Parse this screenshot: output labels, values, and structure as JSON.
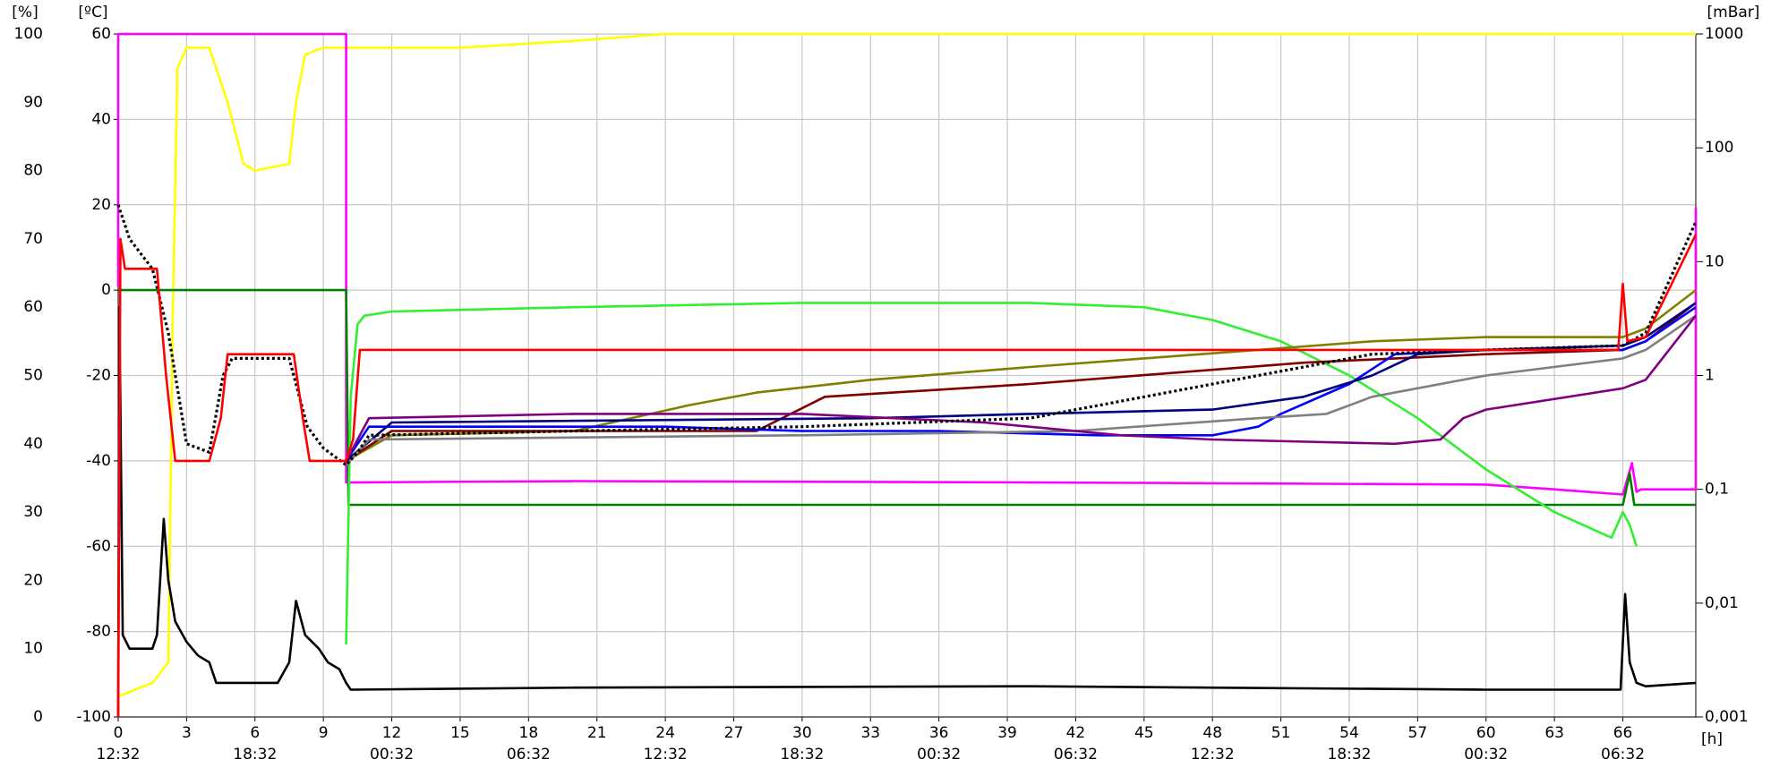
{
  "chart_data": {
    "type": "line",
    "y_label": "[%]",
    "y2_label": "[ºC]",
    "y3_label": "[mBar]",
    "x_label": "[h]",
    "xlim": [
      0,
      69.2
    ],
    "xticks": [
      0,
      3,
      6,
      9,
      12,
      15,
      18,
      21,
      24,
      27,
      30,
      33,
      36,
      39,
      42,
      45,
      48,
      51,
      54,
      57,
      60,
      63,
      66
    ],
    "x_time_ticks": [
      {
        "value": 0,
        "label": "12:32"
      },
      {
        "value": 6,
        "label": "18:32"
      },
      {
        "value": 12,
        "label": "00:32"
      },
      {
        "value": 18,
        "label": "06:32"
      },
      {
        "value": 24,
        "label": "12:32"
      },
      {
        "value": 30,
        "label": "18:32"
      },
      {
        "value": 36,
        "label": "00:32"
      },
      {
        "value": 42,
        "label": "06:32"
      },
      {
        "value": 48,
        "label": "12:32"
      },
      {
        "value": 54,
        "label": "18:32"
      },
      {
        "value": 60,
        "label": "00:32"
      },
      {
        "value": 66,
        "label": "06:32"
      }
    ],
    "ylim": [
      0,
      100
    ],
    "yticks": [
      0,
      10,
      20,
      30,
      40,
      50,
      60,
      70,
      80,
      90,
      100
    ],
    "y2lim": [
      -100,
      60
    ],
    "y2ticks": [
      -100,
      -80,
      -60,
      -40,
      -20,
      0,
      20,
      40,
      60
    ],
    "y3lim": [
      0.001,
      1000
    ],
    "y3_log": true,
    "y3ticks": [
      {
        "value": 0.001,
        "label": "0,001"
      },
      {
        "value": 0.01,
        "label": "0,01"
      },
      {
        "value": 0.1,
        "label": "0,1"
      },
      1,
      10,
      100,
      1000
    ],
    "grid": true,
    "series": [
      {
        "color": "#ffff00",
        "axis": "y",
        "x": [
          0,
          1.5,
          2.2,
          2.4,
          2.6,
          3,
          4,
          4.8,
          5.5,
          6,
          7.5,
          7.8,
          8.2,
          9,
          10,
          15,
          20,
          24,
          69.2
        ],
        "values": [
          3,
          5,
          8,
          60,
          95,
          98,
          98,
          90,
          81,
          80,
          81,
          90,
          97,
          98,
          98,
          98,
          99,
          100,
          100
        ]
      },
      {
        "color": "#ff00ff",
        "axis": "y3",
        "x": [
          0,
          0,
          10,
          10,
          10.3,
          20,
          40,
          60,
          63,
          66,
          66.4,
          66.6,
          66.8,
          69.2,
          69.2
        ],
        "values": [
          6,
          1000,
          1000,
          0.115,
          0.115,
          0.118,
          0.115,
          0.11,
          0.1,
          0.09,
          0.17,
          0.095,
          0.1,
          0.1,
          30
        ]
      },
      {
        "color": "#008000",
        "axis": "y2",
        "x": [
          0,
          10,
          10.1,
          30,
          60,
          66,
          66.3,
          66.5,
          69.2
        ],
        "values": [
          0,
          0,
          -50.3,
          -50.3,
          -50.3,
          -50.3,
          -43,
          -50.3,
          -50.3
        ]
      },
      {
        "color": "#33ee33",
        "axis": "y2",
        "x": [
          10,
          10.2,
          10.5,
          10.8,
          12,
          20,
          30,
          40,
          45,
          48,
          51,
          54,
          57,
          60,
          63,
          65.5,
          66,
          66.3,
          66.6
        ],
        "values": [
          -83,
          -25,
          -8,
          -6,
          -5,
          -4,
          -3,
          -3,
          -4,
          -7,
          -12,
          -20,
          -30,
          -42,
          -52,
          -58,
          -52,
          -55,
          -60
        ]
      },
      {
        "color": "#000000",
        "axis": "y",
        "x": [
          0,
          0.05,
          0.2,
          0.5,
          1.5,
          1.7,
          2,
          2.2,
          2.5,
          3,
          3.5,
          4,
          4.3,
          5,
          7,
          7.5,
          7.8,
          8.2,
          8.8,
          9.2,
          9.7,
          10,
          10.2,
          20,
          40,
          60,
          65.9,
          66.1,
          66.3,
          66.6,
          67,
          69.2
        ],
        "values": [
          0,
          60,
          12,
          10,
          10,
          12,
          29,
          20,
          14,
          11,
          9,
          8,
          5,
          5,
          5,
          8,
          17,
          12,
          10,
          8,
          7,
          5,
          4,
          4.3,
          4.5,
          4,
          4,
          18,
          8,
          5,
          4.5,
          5
        ]
      },
      {
        "color": "#808000",
        "axis": "y2",
        "x": [
          10,
          12,
          20,
          25,
          28,
          33,
          40,
          45,
          50,
          55,
          60,
          66,
          67,
          69.2
        ],
        "values": [
          -40,
          -34,
          -33,
          -27,
          -24,
          -21,
          -18,
          -16,
          -14,
          -12,
          -11,
          -11,
          -9,
          0
        ]
      },
      {
        "color": "#800000",
        "axis": "y2",
        "x": [
          10,
          12,
          20,
          28,
          31,
          40,
          52,
          60,
          66,
          67,
          69.2
        ],
        "values": [
          -40,
          -33,
          -33,
          -33,
          -25,
          -22,
          -17,
          -15,
          -14,
          -12,
          -3
        ]
      },
      {
        "color": "#0000ff",
        "axis": "y2",
        "x": [
          10,
          11,
          24,
          30,
          36,
          43,
          48,
          50,
          51,
          54,
          56,
          60,
          66,
          67,
          69.2
        ],
        "values": [
          -40,
          -32,
          -32,
          -33,
          -33,
          -34,
          -34,
          -32,
          -29,
          -22,
          -15,
          -14,
          -14,
          -12,
          -4
        ]
      },
      {
        "color": "#000080",
        "axis": "y2",
        "x": [
          10,
          12,
          33,
          40,
          48,
          52,
          55,
          57,
          60,
          66,
          67,
          69.2
        ],
        "values": [
          -40,
          -31,
          -30,
          -29,
          -28,
          -25,
          -20,
          -15,
          -14,
          -13,
          -11,
          -3
        ]
      },
      {
        "color": "#808080",
        "axis": "y2",
        "x": [
          10,
          11,
          30,
          42,
          50,
          53,
          55,
          60,
          66,
          67,
          69.2
        ],
        "values": [
          -41,
          -35,
          -34,
          -33,
          -30,
          -29,
          -25,
          -20,
          -16,
          -14,
          -6
        ]
      },
      {
        "color": "#800080",
        "axis": "y2",
        "x": [
          10,
          11,
          20,
          30,
          38,
          44,
          48,
          56,
          58,
          59,
          60,
          66,
          67,
          69.2
        ],
        "values": [
          -40,
          -30,
          -29,
          -29,
          -31,
          -34,
          -35,
          -36,
          -35,
          -30,
          -28,
          -23,
          -21,
          -6
        ]
      },
      {
        "color": "#000000",
        "axis": "y2",
        "dashed": true,
        "x": [
          0,
          0.5,
          1.5,
          2.2,
          3,
          4,
          4.6,
          5,
          7.5,
          8.3,
          9,
          10,
          10.5,
          11,
          20,
          30,
          40,
          50,
          55,
          60,
          66,
          67,
          69.2
        ],
        "values": [
          20,
          12,
          5,
          -10,
          -36,
          -38,
          -20,
          -16,
          -16,
          -32,
          -37,
          -41,
          -38,
          -34,
          -33,
          -32,
          -30,
          -20,
          -15,
          -14,
          -13,
          -10,
          16
        ]
      },
      {
        "color": "#ff0000",
        "axis": "y2",
        "x": [
          0,
          0.1,
          0.3,
          1.7,
          2.1,
          2.5,
          4,
          4.5,
          4.8,
          7.7,
          8.1,
          8.4,
          10,
          10.3,
          10.6,
          30,
          48,
          60,
          65.8,
          66,
          66.2,
          67,
          69.2
        ],
        "values": [
          -100,
          12,
          5,
          5,
          -20,
          -40,
          -40,
          -30,
          -15,
          -15,
          -30,
          -40,
          -40,
          -35,
          -14,
          -14,
          -14,
          -14,
          -14,
          1.5,
          -12,
          -11,
          13
        ]
      }
    ]
  }
}
